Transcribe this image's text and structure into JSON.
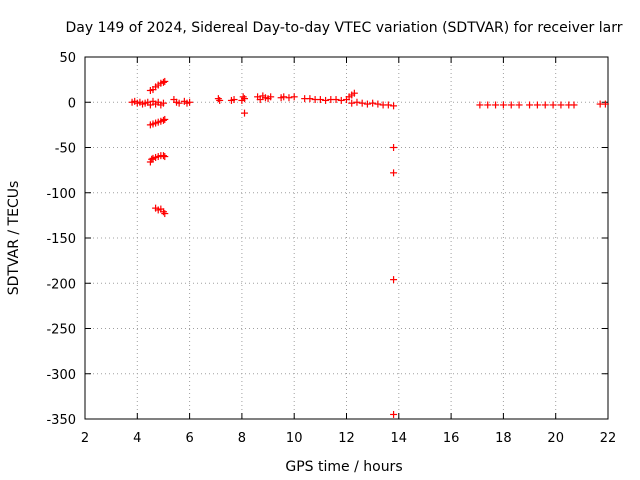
{
  "chart_data": {
    "type": "scatter",
    "title": "Day 149 of 2024, Sidereal Day-to-day VTEC variation (SDTVAR) for receiver larr",
    "xlabel": "GPS time / hours",
    "ylabel": "SDTVAR / TECUs",
    "xlim": [
      2,
      22
    ],
    "ylim": [
      -350,
      50
    ],
    "xticks": [
      2,
      4,
      6,
      8,
      10,
      12,
      14,
      16,
      18,
      20,
      22
    ],
    "yticks": [
      50,
      0,
      -50,
      -100,
      -150,
      -200,
      -250,
      -300,
      -350
    ],
    "xtick_labels": [
      "2",
      "4",
      "6",
      "8",
      "10",
      "12",
      "14",
      "16",
      "18",
      "20",
      "22"
    ],
    "ytick_labels": [
      "50",
      "0",
      "-50",
      "-100",
      "-150",
      "-200",
      "-250",
      "-300",
      "-350"
    ],
    "grid": true,
    "marker": "+",
    "series": [
      {
        "color": "#ff0000",
        "points": [
          [
            3.8,
            0
          ],
          [
            3.9,
            1
          ],
          [
            4.0,
            -1
          ],
          [
            4.1,
            0
          ],
          [
            4.2,
            -2
          ],
          [
            4.3,
            -1
          ],
          [
            4.4,
            0
          ],
          [
            4.5,
            -3
          ],
          [
            4.6,
            1
          ],
          [
            4.7,
            -2
          ],
          [
            4.8,
            0
          ],
          [
            4.9,
            -3
          ],
          [
            5.0,
            -1
          ],
          [
            4.5,
            13
          ],
          [
            4.6,
            14
          ],
          [
            4.7,
            17
          ],
          [
            4.8,
            19
          ],
          [
            4.9,
            21
          ],
          [
            5.0,
            22
          ],
          [
            5.05,
            23
          ],
          [
            4.5,
            -25
          ],
          [
            4.6,
            -24
          ],
          [
            4.7,
            -23
          ],
          [
            4.8,
            -22
          ],
          [
            4.9,
            -21
          ],
          [
            5.0,
            -20
          ],
          [
            5.05,
            -19
          ],
          [
            4.5,
            -66
          ],
          [
            4.55,
            -63
          ],
          [
            4.6,
            -62
          ],
          [
            4.7,
            -61
          ],
          [
            4.8,
            -60
          ],
          [
            4.9,
            -59
          ],
          [
            5.0,
            -59
          ],
          [
            5.05,
            -60
          ],
          [
            4.7,
            -117
          ],
          [
            4.8,
            -119
          ],
          [
            4.9,
            -118
          ],
          [
            5.0,
            -121
          ],
          [
            5.05,
            -123
          ],
          [
            5.4,
            3
          ],
          [
            5.5,
            0
          ],
          [
            5.6,
            -1
          ],
          [
            5.8,
            1
          ],
          [
            5.9,
            -1
          ],
          [
            6.0,
            0
          ],
          [
            7.1,
            4
          ],
          [
            7.15,
            2
          ],
          [
            7.6,
            2
          ],
          [
            7.7,
            3
          ],
          [
            8.0,
            2
          ],
          [
            8.05,
            6
          ],
          [
            8.1,
            4
          ],
          [
            8.1,
            -12
          ],
          [
            8.6,
            6
          ],
          [
            8.7,
            3
          ],
          [
            8.8,
            7
          ],
          [
            8.9,
            5
          ],
          [
            9.0,
            4
          ],
          [
            9.1,
            6
          ],
          [
            9.5,
            5
          ],
          [
            9.6,
            6
          ],
          [
            9.8,
            5
          ],
          [
            10.0,
            6
          ],
          [
            10.4,
            4
          ],
          [
            10.6,
            4
          ],
          [
            10.8,
            3
          ],
          [
            11.0,
            3
          ],
          [
            11.2,
            2
          ],
          [
            11.4,
            3
          ],
          [
            11.6,
            3
          ],
          [
            11.8,
            2
          ],
          [
            12.0,
            3
          ],
          [
            12.1,
            6
          ],
          [
            12.2,
            8
          ],
          [
            12.3,
            10
          ],
          [
            12.2,
            -1
          ],
          [
            12.4,
            0
          ],
          [
            12.6,
            -1
          ],
          [
            12.8,
            -2
          ],
          [
            13.0,
            -1
          ],
          [
            13.2,
            -2
          ],
          [
            13.4,
            -3
          ],
          [
            13.6,
            -3
          ],
          [
            13.8,
            -4
          ],
          [
            13.8,
            -50
          ],
          [
            13.8,
            -78
          ],
          [
            13.8,
            -196
          ],
          [
            13.8,
            -345
          ],
          [
            17.1,
            -3
          ],
          [
            17.4,
            -3
          ],
          [
            17.7,
            -3
          ],
          [
            18.0,
            -3
          ],
          [
            18.3,
            -3
          ],
          [
            18.6,
            -3
          ],
          [
            19.0,
            -3
          ],
          [
            19.3,
            -3
          ],
          [
            19.6,
            -3
          ],
          [
            19.9,
            -3
          ],
          [
            20.2,
            -3
          ],
          [
            20.5,
            -3
          ],
          [
            20.7,
            -3
          ],
          [
            21.7,
            -2
          ],
          [
            21.9,
            -2
          ]
        ]
      }
    ]
  }
}
